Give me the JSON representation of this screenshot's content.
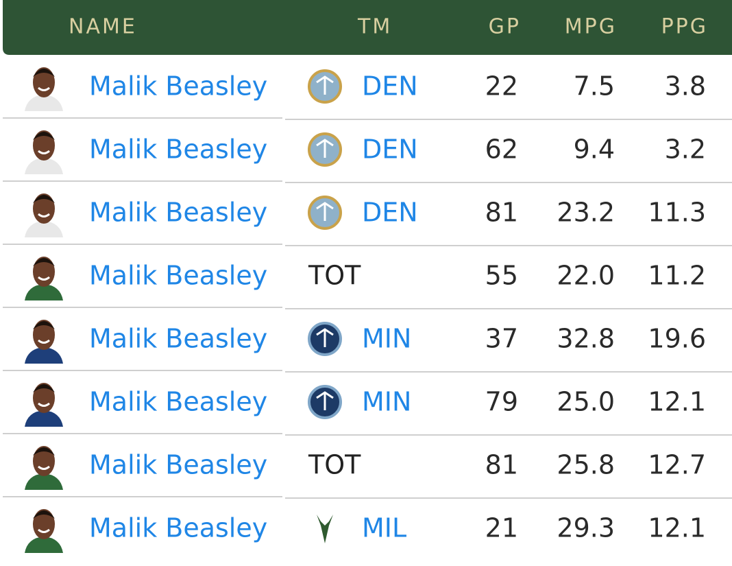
{
  "header": {
    "columns": [
      "NAME",
      "TM",
      "GP",
      "MPG",
      "PPG"
    ]
  },
  "table": {
    "rows": [
      [
        "Malik Beasley",
        "DEN",
        "22",
        "7.5",
        "3.8"
      ],
      [
        "Malik Beasley",
        "DEN",
        "62",
        "9.4",
        "3.2"
      ],
      [
        "Malik Beasley",
        "DEN",
        "81",
        "23.2",
        "11.3"
      ],
      [
        "Malik Beasley",
        "TOT",
        "55",
        "22.0",
        "11.2"
      ],
      [
        "Malik Beasley",
        "MIN",
        "37",
        "32.8",
        "19.6"
      ],
      [
        "Malik Beasley",
        "MIN",
        "79",
        "25.0",
        "12.1"
      ],
      [
        "Malik Beasley",
        "TOT",
        "81",
        "25.8",
        "12.7"
      ],
      [
        "Malik Beasley",
        "MIL",
        "21",
        "29.3",
        "12.1"
      ]
    ]
  }
}
